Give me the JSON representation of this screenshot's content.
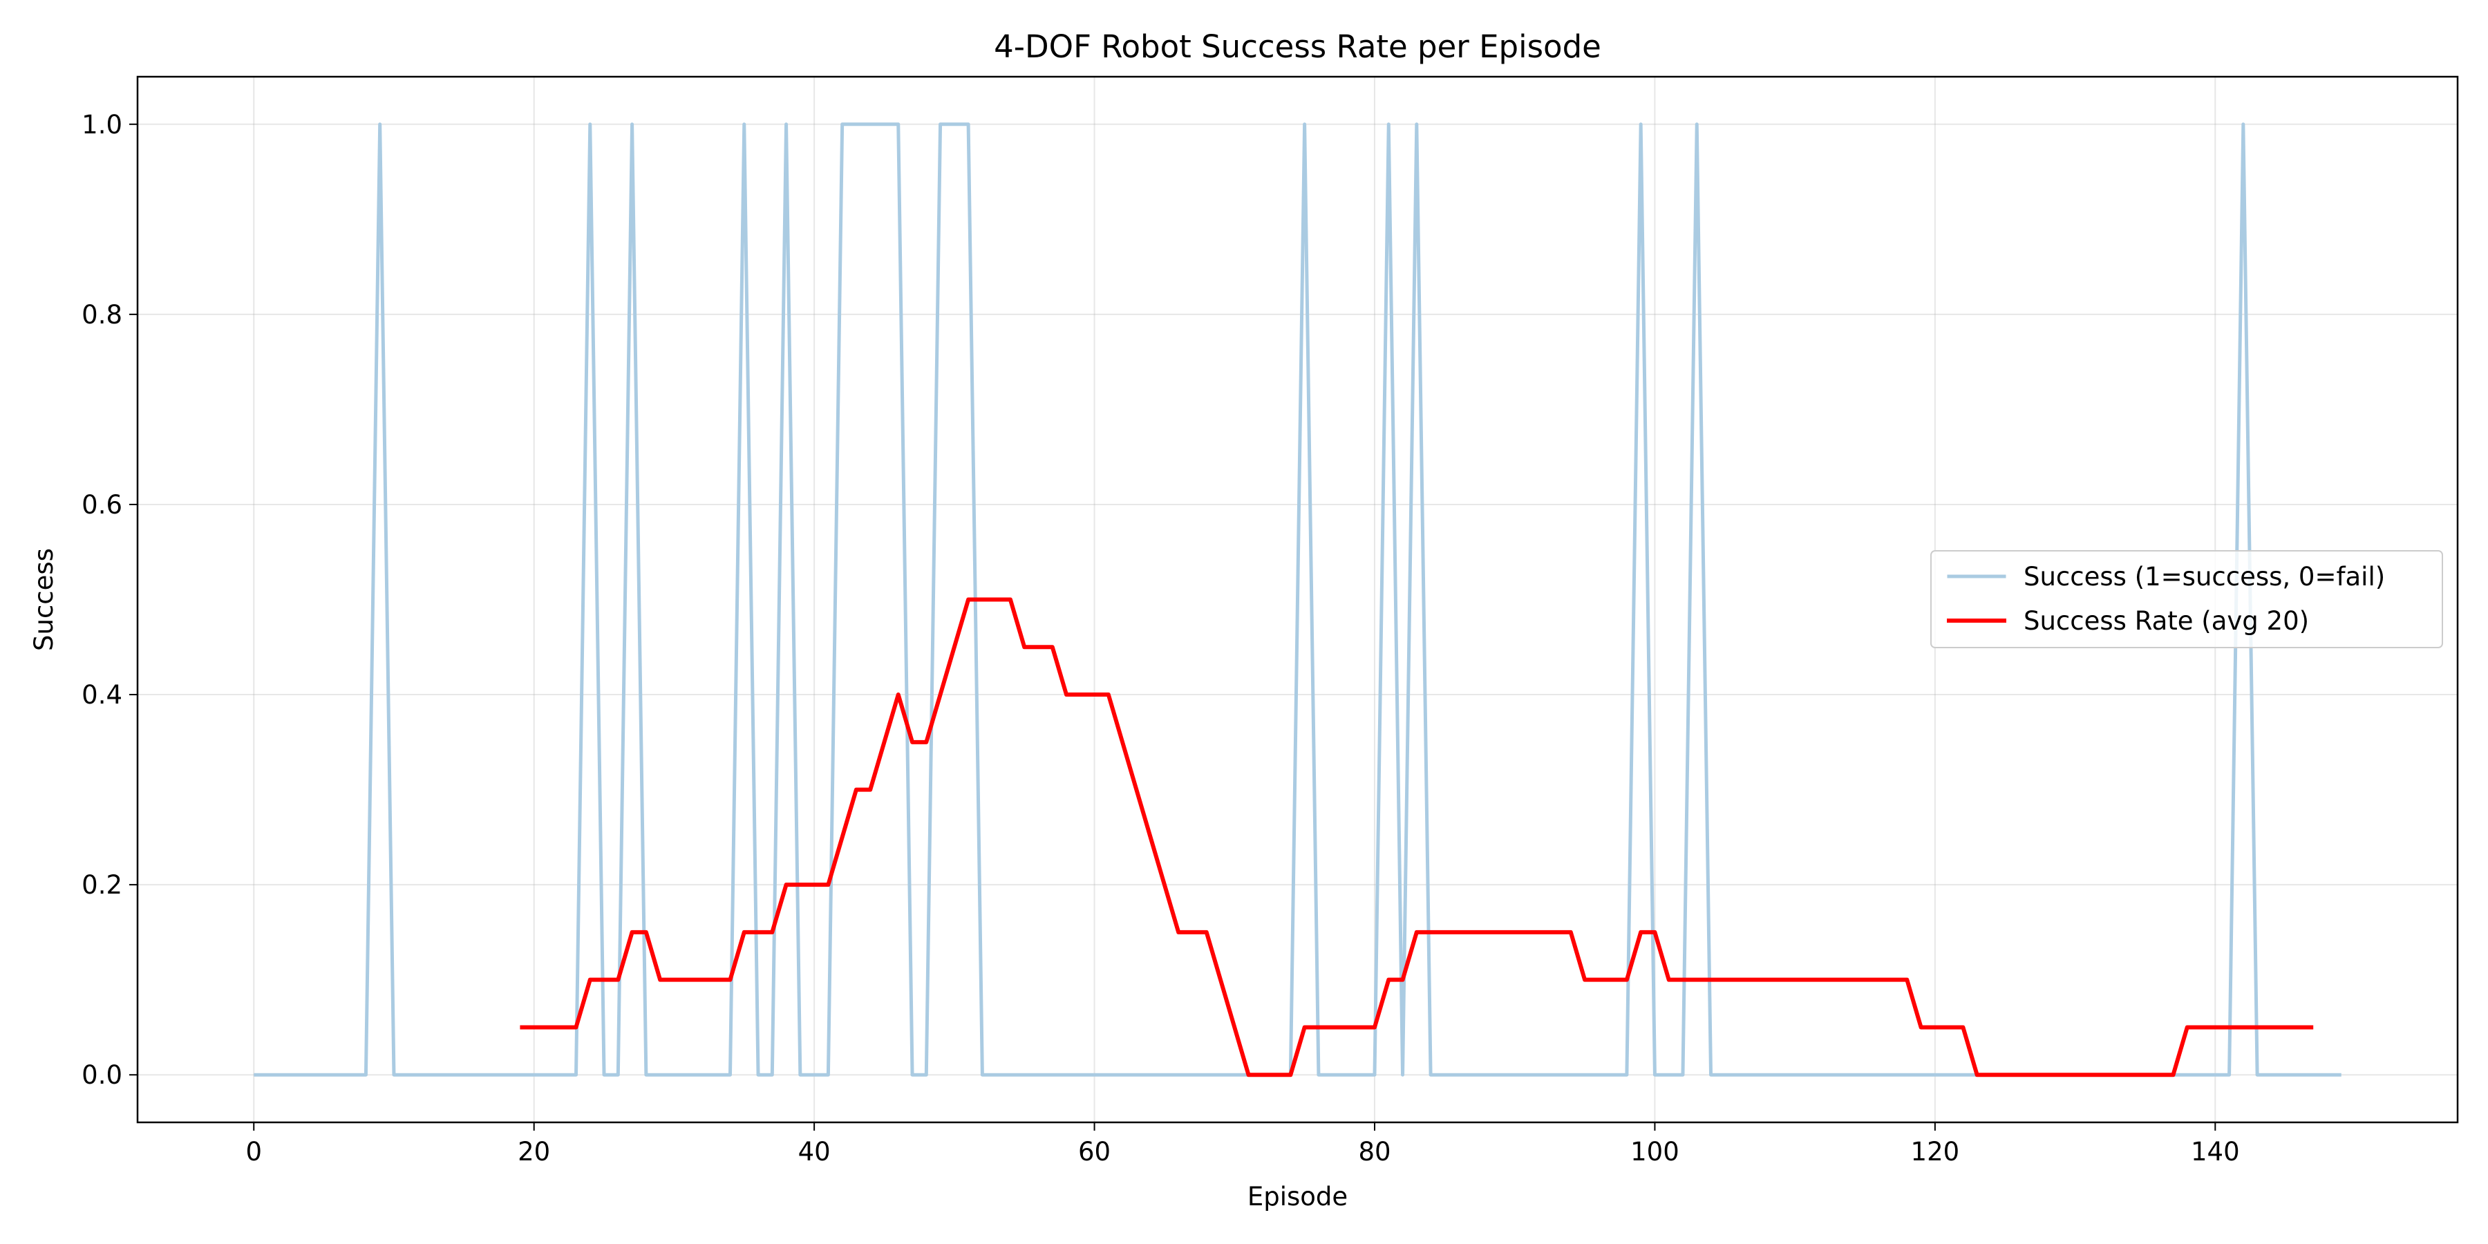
{
  "chart_data": {
    "type": "line",
    "title": "4-DOF Robot Success Rate per Episode",
    "xlabel": "Episode",
    "ylabel": "Success",
    "xlim": [
      -8.3,
      157.3
    ],
    "ylim": [
      -0.05,
      1.05
    ],
    "xticks": [
      0,
      20,
      40,
      60,
      80,
      100,
      120,
      140
    ],
    "yticks": [
      0.0,
      0.2,
      0.4,
      0.6,
      0.8,
      1.0
    ],
    "xtick_labels": [
      "0",
      "20",
      "40",
      "60",
      "80",
      "100",
      "120",
      "140"
    ],
    "ytick_labels": [
      "0.0",
      "0.2",
      "0.4",
      "0.6",
      "0.8",
      "1.0"
    ],
    "grid": true,
    "legend_position": "center-right",
    "series": [
      {
        "name": "Success (1=success, 0=fail)",
        "color": "#aacbe2",
        "x_start": 0,
        "x_end": 149,
        "success_episodes": [
          9,
          24,
          27,
          35,
          38,
          42,
          43,
          44,
          45,
          46,
          49,
          50,
          51,
          75,
          81,
          83,
          99,
          103,
          142
        ]
      },
      {
        "name": "Success Rate (avg 20)",
        "color": "#ff0000",
        "x_start": 19,
        "values": [
          0.05,
          0.05,
          0.05,
          0.05,
          0.05,
          0.1,
          0.1,
          0.1,
          0.15,
          0.15,
          0.1,
          0.1,
          0.1,
          0.1,
          0.1,
          0.1,
          0.15,
          0.15,
          0.15,
          0.2,
          0.2,
          0.2,
          0.2,
          0.25,
          0.3,
          0.3,
          0.35,
          0.4,
          0.35,
          0.35,
          0.4,
          0.45,
          0.5,
          0.5,
          0.5,
          0.5,
          0.45,
          0.45,
          0.45,
          0.4,
          0.4,
          0.4,
          0.4,
          0.35,
          0.3,
          0.25,
          0.2,
          0.15,
          0.15,
          0.15,
          0.1,
          0.05,
          0.0,
          0.0,
          0.0,
          0.0,
          0.05,
          0.05,
          0.05,
          0.05,
          0.05,
          0.05,
          0.1,
          0.1,
          0.15,
          0.15,
          0.15,
          0.15,
          0.15,
          0.15,
          0.15,
          0.15,
          0.15,
          0.15,
          0.15,
          0.15,
          0.1,
          0.1,
          0.1,
          0.1,
          0.15,
          0.15,
          0.1,
          0.1,
          0.1,
          0.1,
          0.1,
          0.1,
          0.1,
          0.1,
          0.1,
          0.1,
          0.1,
          0.1,
          0.1,
          0.1,
          0.1,
          0.1,
          0.1,
          0.1,
          0.05,
          0.05,
          0.05,
          0.05,
          0.0,
          0.0,
          0.0,
          0.0,
          0.0,
          0.0,
          0.0,
          0.0,
          0.0,
          0.0,
          0.0,
          0.0,
          0.0,
          0.0,
          0.0,
          0.05,
          0.05,
          0.05,
          0.05,
          0.05,
          0.05,
          0.05,
          0.05,
          0.05,
          0.05
        ]
      }
    ]
  }
}
